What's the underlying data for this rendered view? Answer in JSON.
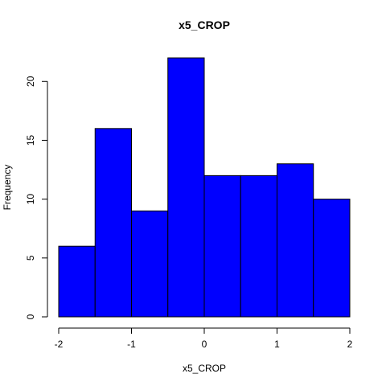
{
  "chart_data": {
    "type": "bar",
    "title": "x5_CROP",
    "xlabel": "x5_CROP",
    "ylabel": "Frequency",
    "bins": [
      {
        "x0": -2.0,
        "x1": -1.5,
        "value": 6
      },
      {
        "x0": -1.5,
        "x1": -1.0,
        "value": 16
      },
      {
        "x0": -1.0,
        "x1": -0.5,
        "value": 9
      },
      {
        "x0": -0.5,
        "x1": 0.0,
        "value": 22
      },
      {
        "x0": 0.0,
        "x1": 0.5,
        "value": 12
      },
      {
        "x0": 0.5,
        "x1": 1.0,
        "value": 12
      },
      {
        "x0": 1.0,
        "x1": 1.5,
        "value": 13
      },
      {
        "x0": 1.5,
        "x1": 2.0,
        "value": 10
      }
    ],
    "xlim": [
      -2,
      2
    ],
    "ylim": [
      0,
      22
    ],
    "x_ticks": [
      -2,
      -1,
      0,
      1,
      2
    ],
    "y_ticks": [
      0,
      5,
      10,
      15,
      20
    ],
    "x_tick_labels": [
      "-2",
      "-1",
      "0",
      "1",
      "2"
    ],
    "y_tick_labels": [
      "0",
      "5",
      "10",
      "15",
      "20"
    ],
    "bar_color": "#0000ff",
    "grid": false,
    "legend": "none"
  }
}
